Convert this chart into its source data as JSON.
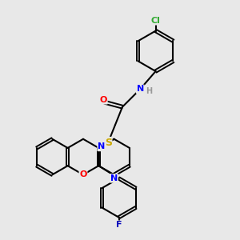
{
  "bg_color": "#e8e8e8",
  "bond_color": "#000000",
  "atom_colors": {
    "O_carbonyl": "#ff0000",
    "O_ring": "#ff0000",
    "N": "#0000ff",
    "S": "#ccaa00",
    "F": "#0000bb",
    "Cl": "#33aa33",
    "H": "#999999",
    "C": "#000000"
  }
}
